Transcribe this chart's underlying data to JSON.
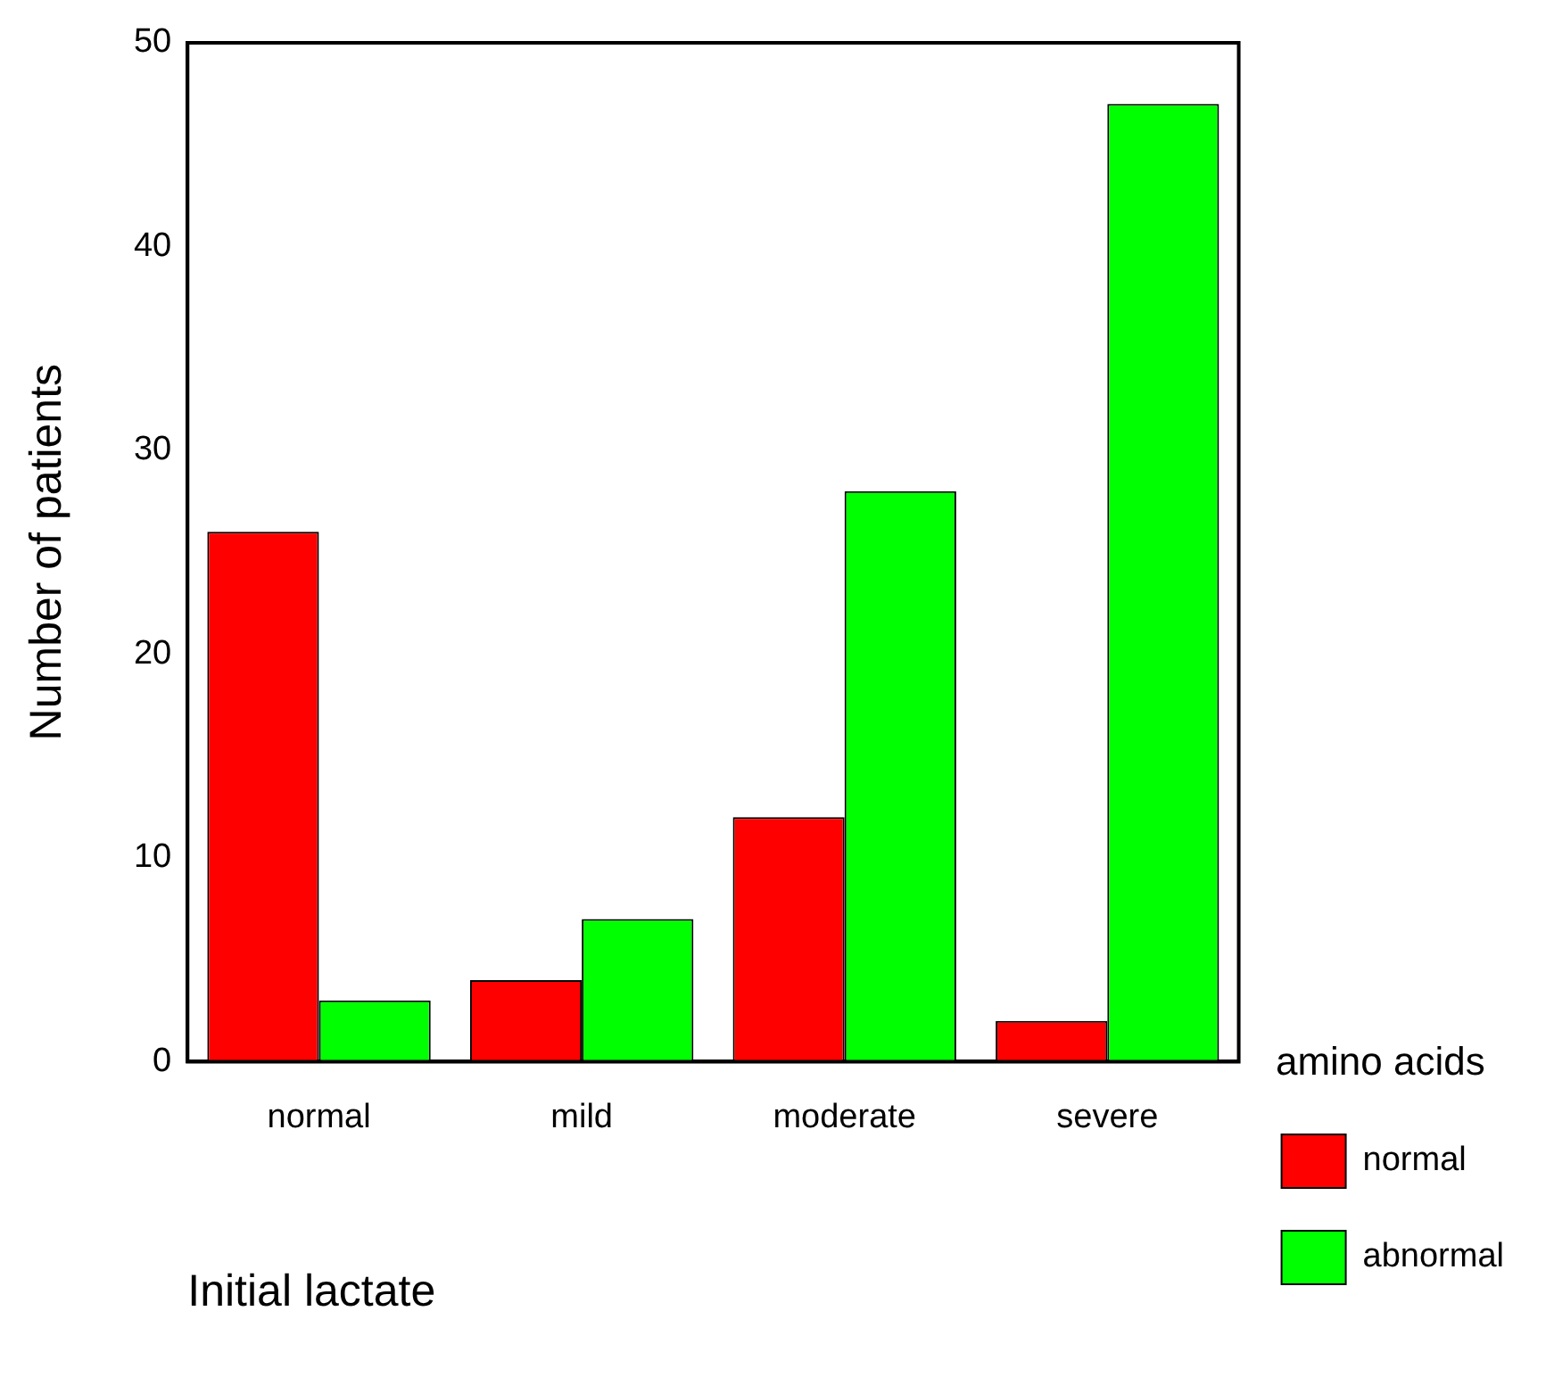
{
  "chart_data": {
    "type": "bar",
    "xlabel": "Initial lactate",
    "ylabel": "Number of patients",
    "legend_title": "amino acids",
    "categories": [
      "normal",
      "mild",
      "moderate",
      "severe"
    ],
    "series": [
      {
        "name": "normal",
        "color": "#ff0000",
        "values": [
          26,
          4,
          12,
          2
        ]
      },
      {
        "name": "abnormal",
        "color": "#00ff00",
        "values": [
          3,
          7,
          28,
          47
        ]
      }
    ],
    "ylim": [
      0,
      50
    ],
    "yticks": [
      0,
      10,
      20,
      30,
      40,
      50
    ],
    "grid": false,
    "legend": "right"
  }
}
